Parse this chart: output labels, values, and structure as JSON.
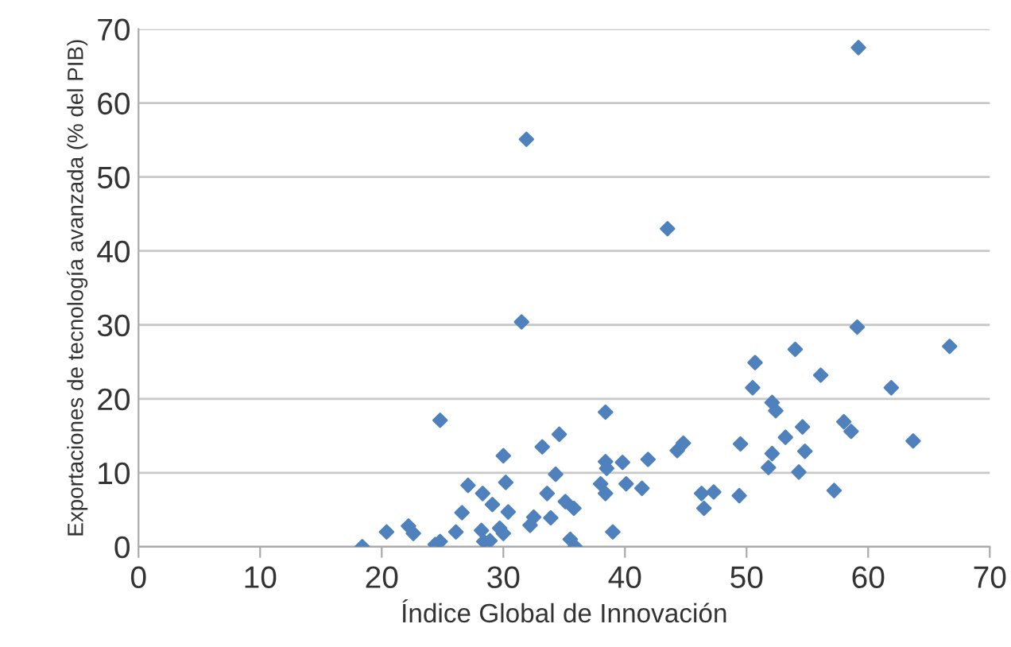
{
  "chart_data": {
    "type": "scatter",
    "xlabel": "Índice Global de Innovación",
    "ylabel": "Exportaciones de tecnología avanzada (% del PIB)",
    "xlim": [
      0,
      70
    ],
    "xticks": [
      0,
      10,
      20,
      30,
      40,
      50,
      60,
      70
    ],
    "ylim": [
      0,
      70
    ],
    "yticks": [
      0,
      10,
      20,
      30,
      40,
      50,
      60,
      70
    ],
    "grid": "y",
    "marker": "diamond",
    "series": [
      {
        "color": "#4f81bd",
        "x": [
          18.4,
          20.4,
          22.2,
          22.6,
          24.4,
          24.8,
          24.8,
          26.1,
          26.6,
          27.1,
          28.3,
          28.2,
          28.4,
          28.9,
          29.1,
          29.7,
          30.0,
          30.0,
          30.2,
          30.4,
          31.5,
          31.9,
          32.2,
          32.5,
          33.2,
          33.6,
          33.9,
          34.3,
          34.6,
          35.1,
          35.8,
          35.5,
          35.9,
          38.0,
          38.4,
          38.4,
          38.5,
          38.4,
          39.0,
          39.8,
          40.1,
          41.4,
          41.9,
          43.5,
          44.3,
          44.8,
          46.3,
          46.5,
          47.3,
          49.4,
          49.5,
          50.5,
          50.7,
          51.8,
          52.1,
          52.1,
          52.4,
          53.2,
          54.0,
          54.3,
          54.6,
          54.8,
          56.1,
          57.2,
          58.0,
          58.6,
          59.1,
          59.2,
          61.9,
          63.7,
          66.7
        ],
        "values": [
          0.0,
          2.0,
          2.8,
          1.8,
          0.3,
          0.7,
          17.1,
          2.0,
          4.6,
          8.3,
          7.2,
          2.2,
          0.7,
          0.8,
          5.7,
          2.5,
          1.8,
          12.3,
          8.7,
          4.7,
          30.4,
          55.1,
          2.9,
          4.0,
          13.5,
          7.2,
          3.9,
          9.8,
          15.2,
          6.1,
          5.2,
          1.0,
          0.0,
          8.5,
          18.2,
          11.5,
          10.6,
          7.2,
          2.0,
          11.4,
          8.5,
          7.9,
          11.8,
          43.0,
          13.0,
          14.0,
          7.2,
          5.2,
          7.4,
          6.9,
          13.9,
          21.5,
          24.9,
          10.7,
          12.6,
          19.5,
          18.4,
          14.8,
          26.7,
          10.1,
          16.2,
          12.9,
          23.2,
          7.6,
          16.9,
          15.6,
          29.7,
          67.5,
          21.5,
          14.3,
          27.1
        ]
      }
    ]
  }
}
